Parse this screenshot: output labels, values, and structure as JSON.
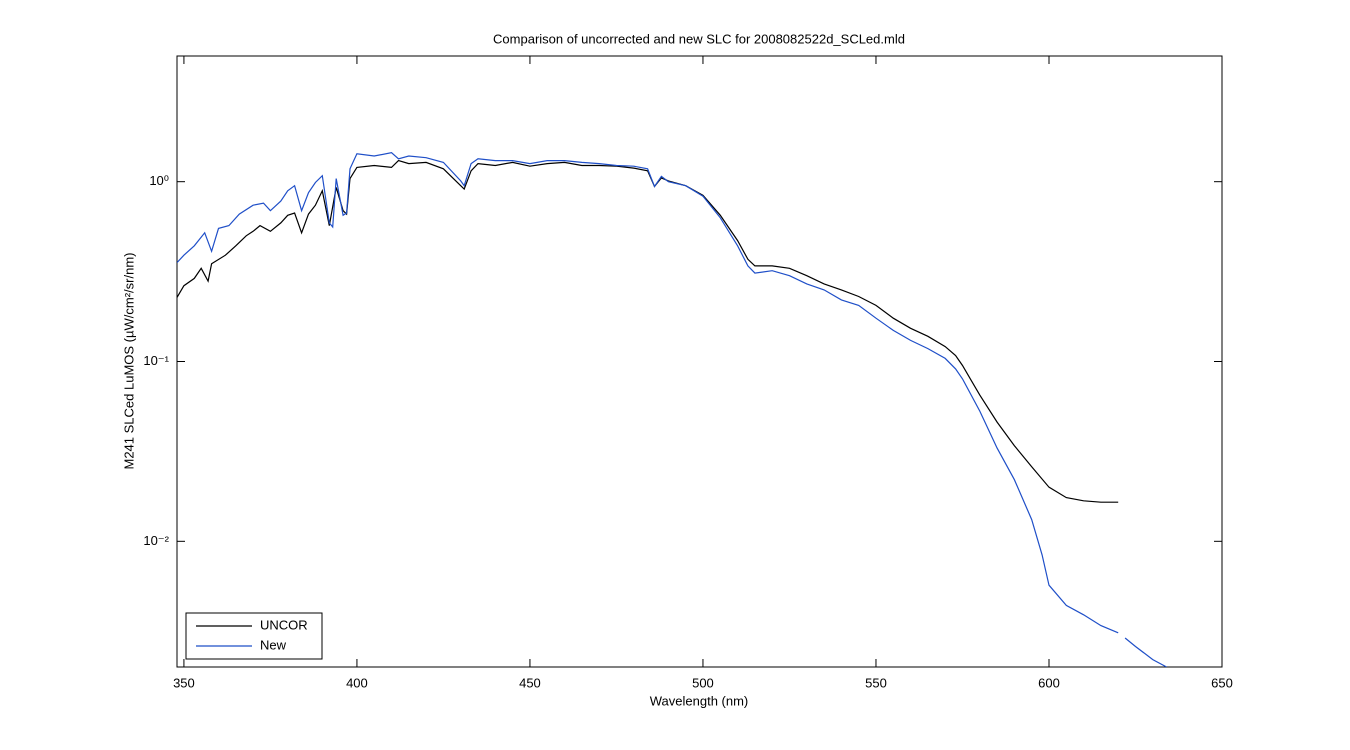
{
  "chart_data": {
    "type": "line",
    "title": "Comparison of uncorrected and new SLC for 2008082522d_SCLed.mld",
    "xlabel": "Wavelength (nm)",
    "ylabel": "M241 SLCed LuMOS (µW/cm²/sr/nm)",
    "xlim": [
      348,
      650
    ],
    "xticks": [
      350,
      400,
      450,
      500,
      550,
      600,
      650
    ],
    "ylim": [
      0.002,
      5
    ],
    "yticks": [
      {
        "value": 0.01,
        "label": "10⁻²"
      },
      {
        "value": 0.1,
        "label": "10⁻¹"
      },
      {
        "value": 1,
        "label": "10⁰"
      }
    ],
    "yscale": "log",
    "legend": "lower left",
    "series": [
      {
        "name": "UNCOR",
        "color": "#000000",
        "x": [
          348,
          350,
          353,
          355,
          357,
          358,
          362,
          365,
          368,
          370,
          372,
          375,
          378,
          380,
          382,
          384,
          386,
          388,
          390,
          392,
          394,
          396,
          397,
          398,
          400,
          405,
          410,
          412,
          415,
          420,
          425,
          430,
          431,
          433,
          435,
          440,
          445,
          450,
          455,
          460,
          465,
          470,
          475,
          480,
          484,
          486,
          488,
          490,
          495,
          500,
          505,
          510,
          513,
          515,
          520,
          525,
          530,
          535,
          540,
          545,
          550,
          555,
          560,
          565,
          570,
          573,
          575,
          580,
          585,
          590,
          595,
          600,
          605,
          610,
          615,
          620
        ],
        "values": [
          0.227,
          0.264,
          0.29,
          0.33,
          0.28,
          0.35,
          0.39,
          0.44,
          0.5,
          0.53,
          0.57,
          0.53,
          0.59,
          0.65,
          0.67,
          0.52,
          0.66,
          0.74,
          0.89,
          0.57,
          0.93,
          0.69,
          0.66,
          1.04,
          1.2,
          1.23,
          1.2,
          1.31,
          1.26,
          1.28,
          1.18,
          0.95,
          0.91,
          1.15,
          1.26,
          1.23,
          1.28,
          1.22,
          1.26,
          1.28,
          1.23,
          1.23,
          1.22,
          1.19,
          1.15,
          0.94,
          1.05,
          1.01,
          0.95,
          0.84,
          0.65,
          0.47,
          0.37,
          0.34,
          0.34,
          0.33,
          0.3,
          0.27,
          0.25,
          0.23,
          0.205,
          0.174,
          0.153,
          0.138,
          0.121,
          0.108,
          0.095,
          0.065,
          0.046,
          0.034,
          0.026,
          0.02,
          0.0175,
          0.0168,
          0.0165,
          0.0165
        ]
      },
      {
        "name": "New",
        "color": "#1f4fc8",
        "x": [
          348,
          350,
          353,
          356,
          358,
          360,
          363,
          366,
          370,
          373,
          375,
          378,
          380,
          382,
          384,
          386,
          388,
          390,
          392,
          393,
          394,
          396,
          397,
          398,
          400,
          405,
          410,
          412,
          415,
          420,
          425,
          430,
          431,
          433,
          435,
          440,
          445,
          450,
          455,
          460,
          465,
          470,
          475,
          480,
          484,
          486,
          488,
          490,
          495,
          500,
          505,
          510,
          513,
          515,
          520,
          525,
          530,
          535,
          540,
          545,
          550,
          555,
          560,
          565,
          570,
          573,
          575,
          580,
          585,
          590,
          595,
          598,
          600,
          605,
          610,
          615,
          620,
          621,
          622,
          625,
          630,
          634
        ],
        "values": [
          0.355,
          0.39,
          0.44,
          0.52,
          0.41,
          0.55,
          0.57,
          0.66,
          0.74,
          0.76,
          0.69,
          0.78,
          0.89,
          0.95,
          0.69,
          0.87,
          0.99,
          1.08,
          0.59,
          0.56,
          1.04,
          0.65,
          0.67,
          1.18,
          1.43,
          1.39,
          1.45,
          1.34,
          1.39,
          1.36,
          1.28,
          1.01,
          0.95,
          1.26,
          1.34,
          1.31,
          1.31,
          1.26,
          1.31,
          1.31,
          1.28,
          1.26,
          1.23,
          1.22,
          1.18,
          0.94,
          1.07,
          1.0,
          0.95,
          0.83,
          0.63,
          0.44,
          0.34,
          0.31,
          0.32,
          0.3,
          0.27,
          0.25,
          0.22,
          0.205,
          0.174,
          0.149,
          0.131,
          0.118,
          0.104,
          0.091,
          0.08,
          0.053,
          0.033,
          0.022,
          0.0132,
          0.0084,
          0.0057,
          0.0044,
          0.0039,
          0.0034,
          0.0031,
          null,
          0.0029,
          0.0026,
          0.0022,
          0.002
        ]
      }
    ]
  }
}
